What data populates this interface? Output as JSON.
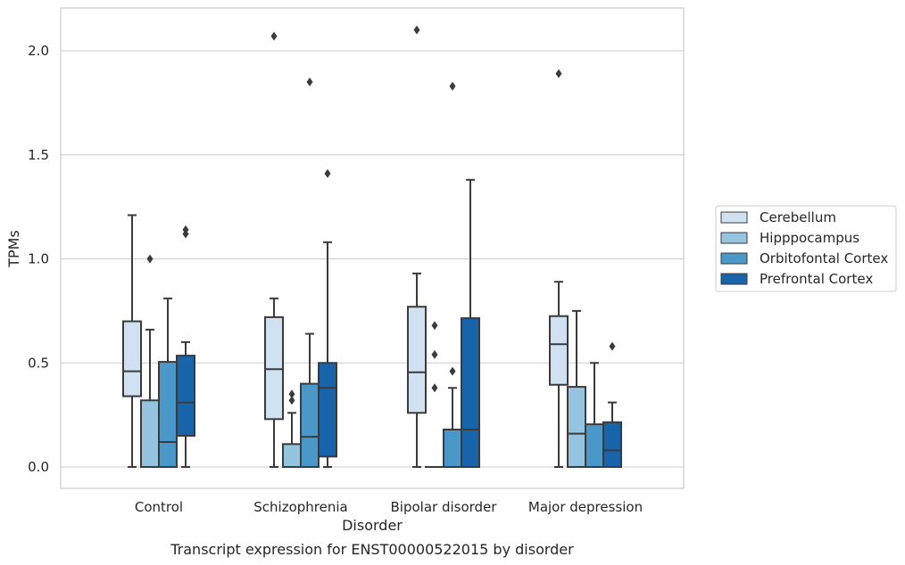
{
  "chart_data": {
    "type": "box",
    "xlabel": "Disorder",
    "ylabel": "TPMs",
    "caption": "Transcript expression for ENST00000522015 by disorder",
    "ylim": [
      -0.1,
      2.22
    ],
    "yticks": [
      "0.0",
      "0.5",
      "1.0",
      "1.5",
      "2.0"
    ],
    "grid": true,
    "legend_position": "right",
    "categories": [
      "Control",
      "Schizophrenia",
      "Bipolar disorder",
      "Major depression"
    ],
    "series": [
      {
        "name": "Cerebellum",
        "color": "#d0e1f2",
        "boxes": [
          {
            "whislo": 0.0,
            "q1": 0.34,
            "med": 0.46,
            "q3": 0.7,
            "whishi": 1.21,
            "fliers": []
          },
          {
            "whislo": 0.0,
            "q1": 0.23,
            "med": 0.47,
            "q3": 0.72,
            "whishi": 0.81,
            "fliers": [
              2.07
            ]
          },
          {
            "whislo": 0.0,
            "q1": 0.26,
            "med": 0.455,
            "q3": 0.77,
            "whishi": 0.93,
            "fliers": [
              2.1
            ]
          },
          {
            "whislo": 0.0,
            "q1": 0.395,
            "med": 0.59,
            "q3": 0.725,
            "whishi": 0.89,
            "fliers": [
              1.89
            ]
          }
        ]
      },
      {
        "name": "Hipppocampus",
        "color": "#94c4df",
        "boxes": [
          {
            "whislo": 0.0,
            "q1": 0.0,
            "med": 0.0,
            "q3": 0.32,
            "whishi": 0.66,
            "fliers": [
              1.0
            ]
          },
          {
            "whislo": 0.0,
            "q1": 0.0,
            "med": 0.0,
            "q3": 0.11,
            "whishi": 0.26,
            "fliers": [
              0.32,
              0.35
            ]
          },
          {
            "whislo": 0.0,
            "q1": 0.0,
            "med": 0.0,
            "q3": 0.0,
            "whishi": 0.0,
            "fliers": [
              0.38,
              0.54,
              0.68
            ]
          },
          {
            "whislo": 0.0,
            "q1": 0.0,
            "med": 0.16,
            "q3": 0.385,
            "whishi": 0.75,
            "fliers": []
          }
        ]
      },
      {
        "name": "Orbitofontal Cortex",
        "color": "#4a98c9",
        "boxes": [
          {
            "whislo": 0.0,
            "q1": 0.0,
            "med": 0.12,
            "q3": 0.505,
            "whishi": 0.81,
            "fliers": []
          },
          {
            "whislo": 0.0,
            "q1": 0.0,
            "med": 0.145,
            "q3": 0.4,
            "whishi": 0.64,
            "fliers": [
              1.85
            ]
          },
          {
            "whislo": 0.0,
            "q1": 0.0,
            "med": 0.0,
            "q3": 0.18,
            "whishi": 0.38,
            "fliers": [
              0.46,
              1.83
            ]
          },
          {
            "whislo": 0.0,
            "q1": 0.0,
            "med": 0.0,
            "q3": 0.205,
            "whishi": 0.5,
            "fliers": []
          }
        ]
      },
      {
        "name": "Prefrontal Cortex",
        "color": "#1764ab",
        "boxes": [
          {
            "whislo": 0.0,
            "q1": 0.15,
            "med": 0.31,
            "q3": 0.535,
            "whishi": 0.6,
            "fliers": [
              1.12,
              1.14
            ]
          },
          {
            "whislo": 0.0,
            "q1": 0.05,
            "med": 0.38,
            "q3": 0.5,
            "whishi": 1.08,
            "fliers": [
              1.41
            ]
          },
          {
            "whislo": 0.0,
            "q1": 0.0,
            "med": 0.18,
            "q3": 0.715,
            "whishi": 1.38,
            "fliers": []
          },
          {
            "whislo": 0.0,
            "q1": 0.0,
            "med": 0.08,
            "q3": 0.215,
            "whishi": 0.31,
            "fliers": [
              0.58
            ]
          }
        ]
      }
    ]
  }
}
